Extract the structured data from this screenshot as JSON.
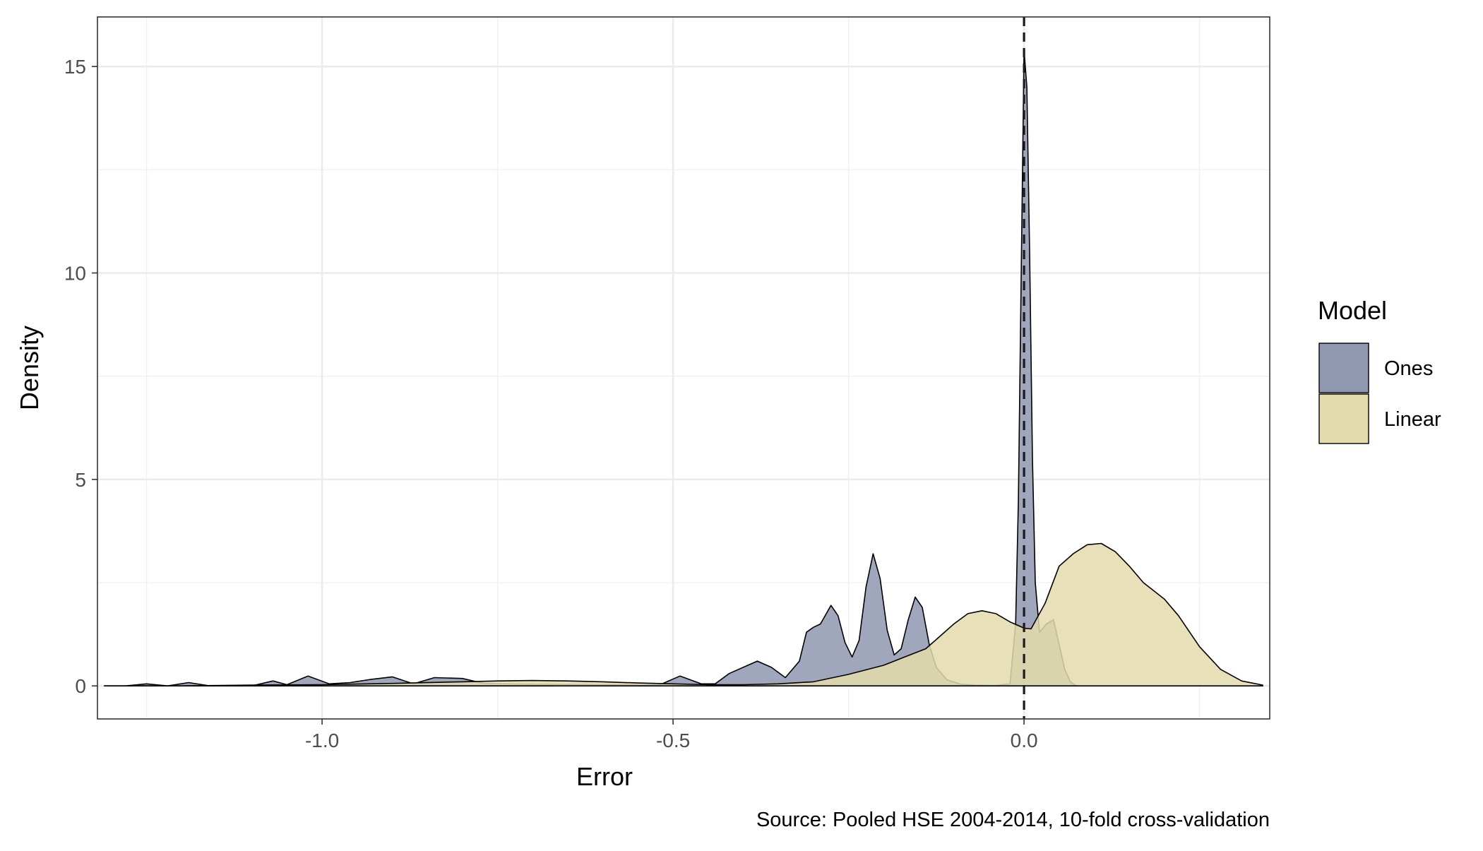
{
  "chart_data": {
    "type": "area",
    "subtype": "density",
    "title": "",
    "xlabel": "Error",
    "ylabel": "Density",
    "caption": "Source: Pooled HSE 2004-2014, 10-fold cross-validation",
    "xlim": [
      -1.32,
      0.35
    ],
    "ylim": [
      -0.8,
      16.2
    ],
    "x_ticks": [
      -1.0,
      -0.5,
      0.0
    ],
    "x_tick_labels": [
      "-1.0",
      "-0.5",
      "0.0"
    ],
    "y_ticks": [
      0,
      5,
      10,
      15
    ],
    "y_tick_labels": [
      "0",
      "5",
      "10",
      "15"
    ],
    "grid": true,
    "reference_line": {
      "x": 0.0,
      "style": "dashed"
    },
    "legend": {
      "title": "Model",
      "position": "right",
      "entries": [
        {
          "name": "Ones",
          "color": "#8f98b0"
        },
        {
          "name": "Linear",
          "color": "#e3dbac"
        }
      ]
    },
    "series": [
      {
        "name": "Ones",
        "color": "#8f98b0",
        "points": [
          [
            -1.31,
            0.0
          ],
          [
            -1.28,
            0.0
          ],
          [
            -1.25,
            0.05
          ],
          [
            -1.22,
            0.0
          ],
          [
            -1.19,
            0.08
          ],
          [
            -1.16,
            0.0
          ],
          [
            -1.1,
            0.0
          ],
          [
            -1.07,
            0.12
          ],
          [
            -1.05,
            0.03
          ],
          [
            -1.02,
            0.24
          ],
          [
            -0.99,
            0.05
          ],
          [
            -0.96,
            0.08
          ],
          [
            -0.93,
            0.16
          ],
          [
            -0.9,
            0.22
          ],
          [
            -0.87,
            0.05
          ],
          [
            -0.84,
            0.2
          ],
          [
            -0.8,
            0.18
          ],
          [
            -0.77,
            0.06
          ],
          [
            -0.7,
            0.04
          ],
          [
            -0.6,
            0.03
          ],
          [
            -0.52,
            0.02
          ],
          [
            -0.49,
            0.24
          ],
          [
            -0.46,
            0.05
          ],
          [
            -0.44,
            0.05
          ],
          [
            -0.42,
            0.3
          ],
          [
            -0.4,
            0.45
          ],
          [
            -0.38,
            0.6
          ],
          [
            -0.36,
            0.45
          ],
          [
            -0.34,
            0.2
          ],
          [
            -0.32,
            0.6
          ],
          [
            -0.31,
            1.3
          ],
          [
            -0.3,
            1.42
          ],
          [
            -0.29,
            1.5
          ],
          [
            -0.275,
            1.95
          ],
          [
            -0.265,
            1.7
          ],
          [
            -0.255,
            1.05
          ],
          [
            -0.245,
            0.7
          ],
          [
            -0.235,
            1.1
          ],
          [
            -0.225,
            2.4
          ],
          [
            -0.215,
            3.2
          ],
          [
            -0.205,
            2.6
          ],
          [
            -0.195,
            1.35
          ],
          [
            -0.185,
            0.75
          ],
          [
            -0.175,
            0.9
          ],
          [
            -0.165,
            1.6
          ],
          [
            -0.155,
            2.15
          ],
          [
            -0.145,
            1.9
          ],
          [
            -0.135,
            1.0
          ],
          [
            -0.125,
            0.45
          ],
          [
            -0.11,
            0.15
          ],
          [
            -0.09,
            0.04
          ],
          [
            -0.07,
            0.02
          ],
          [
            -0.04,
            0.01
          ],
          [
            -0.02,
            0.05
          ],
          [
            -0.012,
            1.5
          ],
          [
            -0.008,
            4.5
          ],
          [
            -0.004,
            10.0
          ],
          [
            0.0,
            15.4
          ],
          [
            0.004,
            14.5
          ],
          [
            0.008,
            10.5
          ],
          [
            0.012,
            5.5
          ],
          [
            0.016,
            2.5
          ],
          [
            0.022,
            1.3
          ],
          [
            0.032,
            1.5
          ],
          [
            0.042,
            1.6
          ],
          [
            0.05,
            1.0
          ],
          [
            0.058,
            0.4
          ],
          [
            0.066,
            0.1
          ],
          [
            0.075,
            0.0
          ]
        ]
      },
      {
        "name": "Linear",
        "color": "#e3dbac",
        "points": [
          [
            -1.31,
            0.0
          ],
          [
            -1.2,
            0.0
          ],
          [
            -1.1,
            0.02
          ],
          [
            -1.0,
            0.03
          ],
          [
            -0.9,
            0.06
          ],
          [
            -0.8,
            0.1
          ],
          [
            -0.75,
            0.12
          ],
          [
            -0.7,
            0.13
          ],
          [
            -0.65,
            0.12
          ],
          [
            -0.6,
            0.1
          ],
          [
            -0.55,
            0.07
          ],
          [
            -0.5,
            0.05
          ],
          [
            -0.45,
            0.03
          ],
          [
            -0.4,
            0.03
          ],
          [
            -0.35,
            0.05
          ],
          [
            -0.3,
            0.1
          ],
          [
            -0.25,
            0.28
          ],
          [
            -0.2,
            0.5
          ],
          [
            -0.17,
            0.7
          ],
          [
            -0.14,
            0.9
          ],
          [
            -0.12,
            1.2
          ],
          [
            -0.1,
            1.5
          ],
          [
            -0.08,
            1.75
          ],
          [
            -0.06,
            1.82
          ],
          [
            -0.04,
            1.75
          ],
          [
            -0.02,
            1.55
          ],
          [
            0.0,
            1.4
          ],
          [
            0.01,
            1.38
          ],
          [
            0.03,
            2.0
          ],
          [
            0.05,
            2.9
          ],
          [
            0.07,
            3.2
          ],
          [
            0.09,
            3.42
          ],
          [
            0.11,
            3.45
          ],
          [
            0.13,
            3.25
          ],
          [
            0.15,
            2.9
          ],
          [
            0.17,
            2.5
          ],
          [
            0.2,
            2.1
          ],
          [
            0.22,
            1.7
          ],
          [
            0.25,
            0.95
          ],
          [
            0.28,
            0.4
          ],
          [
            0.31,
            0.12
          ],
          [
            0.34,
            0.02
          ]
        ]
      }
    ]
  }
}
